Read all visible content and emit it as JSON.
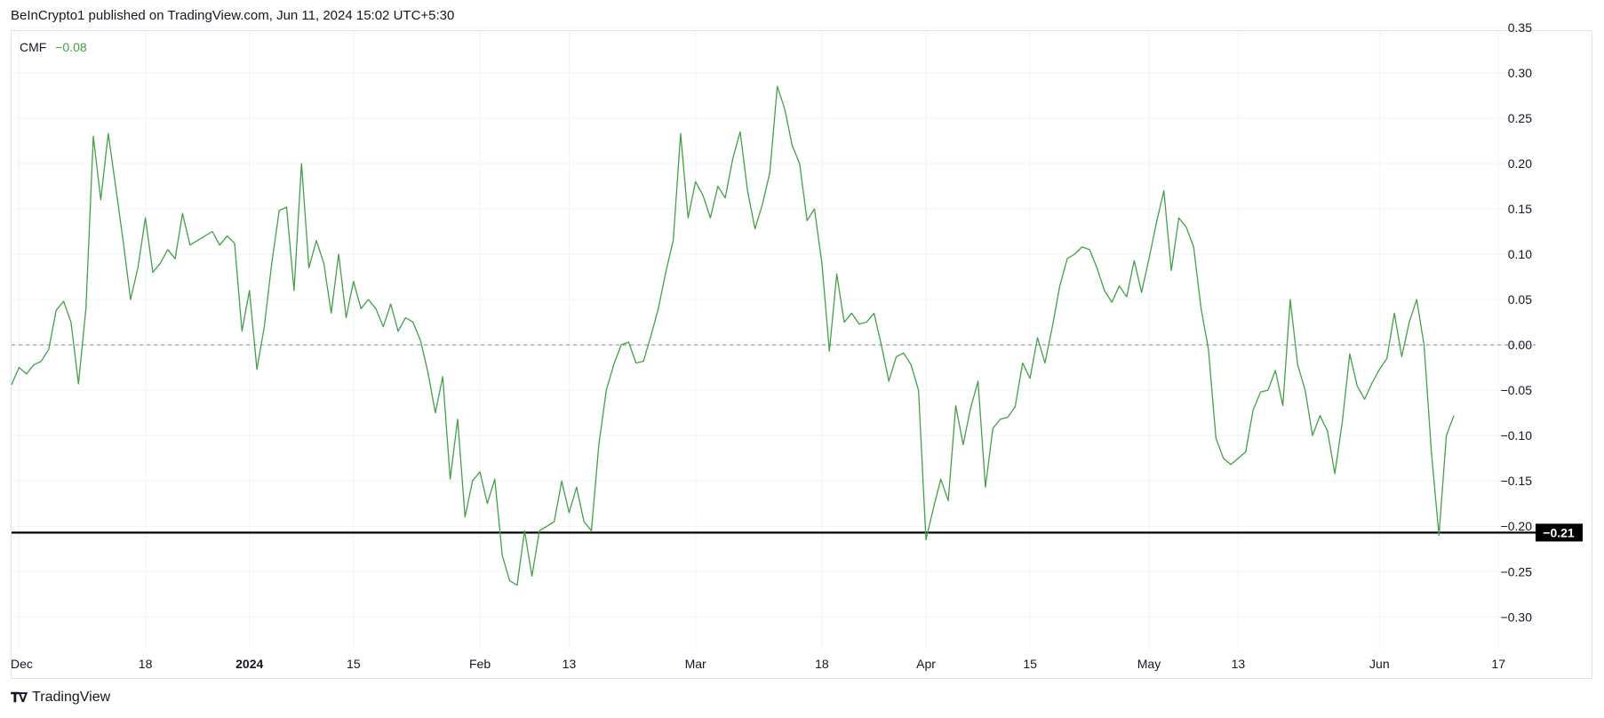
{
  "header": {
    "published": "BeInCrypto1 published on TradingView.com, Jun 11, 2024 15:02 UTC+5:30"
  },
  "legend": {
    "name": "CMF",
    "value": "−0.08"
  },
  "footer": {
    "brand": "TradingView"
  },
  "colors": {
    "line": "#43a047",
    "support": "#000000",
    "grid": "#f0f3fa",
    "zero": "#868993",
    "badge_bg": "#000000",
    "badge_text": "#ffffff"
  },
  "chart_data": {
    "type": "line",
    "series": [
      {
        "name": "CMF",
        "values": [
          -0.044,
          -0.025,
          -0.032,
          -0.022,
          -0.018,
          -0.005,
          0.038,
          0.048,
          0.025,
          -0.043,
          0.04,
          0.23,
          0.16,
          0.233,
          0.175,
          0.115,
          0.05,
          0.085,
          0.14,
          0.08,
          0.09,
          0.105,
          0.095,
          0.145,
          0.11,
          0.115,
          0.12,
          0.125,
          0.11,
          0.12,
          0.112,
          0.015,
          0.06,
          -0.027,
          0.02,
          0.09,
          0.148,
          0.152,
          0.06,
          0.2,
          0.085,
          0.115,
          0.09,
          0.035,
          0.1,
          0.03,
          0.07,
          0.04,
          0.05,
          0.04,
          0.02,
          0.045,
          0.015,
          0.03,
          0.025,
          0.005,
          -0.03,
          -0.075,
          -0.035,
          -0.148,
          -0.082,
          -0.19,
          -0.15,
          -0.14,
          -0.175,
          -0.148,
          -0.232,
          -0.26,
          -0.265,
          -0.205,
          -0.255,
          -0.205,
          -0.2,
          -0.195,
          -0.15,
          -0.185,
          -0.157,
          -0.195,
          -0.205,
          -0.11,
          -0.05,
          -0.022,
          0,
          0.003,
          -0.02,
          -0.018,
          0.01,
          0.04,
          0.08,
          0.115,
          0.233,
          0.14,
          0.18,
          0.165,
          0.14,
          0.175,
          0.162,
          0.205,
          0.235,
          0.17,
          0.128,
          0.155,
          0.19,
          0.285,
          0.26,
          0.22,
          0.2,
          0.137,
          0.15,
          0.09,
          -0.007,
          0.078,
          0.025,
          0.035,
          0.023,
          0.025,
          0.035,
          0,
          -0.04,
          -0.013,
          -0.009,
          -0.022,
          -0.05,
          -0.215,
          -0.18,
          -0.148,
          -0.172,
          -0.067,
          -0.11,
          -0.07,
          -0.04,
          -0.157,
          -0.092,
          -0.082,
          -0.08,
          -0.068,
          -0.02,
          -0.037,
          0.008,
          -0.02,
          0.02,
          0.065,
          0.095,
          0.1,
          0.108,
          0.105,
          0.085,
          0.06,
          0.047,
          0.065,
          0.053,
          0.093,
          0.058,
          0.095,
          0.135,
          0.17,
          0.082,
          0.14,
          0.13,
          0.108,
          0.04,
          -0.005,
          -0.103,
          -0.125,
          -0.132,
          -0.125,
          -0.118,
          -0.072,
          -0.052,
          -0.05,
          -0.028,
          -0.067,
          0.05,
          -0.022,
          -0.05,
          -0.1,
          -0.078,
          -0.095,
          -0.142,
          -0.085,
          -0.01,
          -0.045,
          -0.06,
          -0.042,
          -0.027,
          -0.015,
          0.035,
          -0.013,
          0.025,
          0.05,
          0.0,
          -0.12,
          -0.21,
          -0.1,
          -0.078
        ]
      }
    ],
    "x_start": "2023-11-30",
    "x_end": "2024-06-11",
    "x_ticks": [
      {
        "date": "2023-12-01",
        "label": "Dec",
        "bold": false
      },
      {
        "date": "2023-12-18",
        "label": "18",
        "bold": false
      },
      {
        "date": "2024-01-01",
        "label": "2024",
        "bold": true
      },
      {
        "date": "2024-01-15",
        "label": "15",
        "bold": false
      },
      {
        "date": "2024-02-01",
        "label": "Feb",
        "bold": false
      },
      {
        "date": "2024-02-13",
        "label": "13",
        "bold": false
      },
      {
        "date": "2024-03-01",
        "label": "Mar",
        "bold": false
      },
      {
        "date": "2024-03-18",
        "label": "18",
        "bold": false
      },
      {
        "date": "2024-04-01",
        "label": "Apr",
        "bold": false
      },
      {
        "date": "2024-04-15",
        "label": "15",
        "bold": false
      },
      {
        "date": "2024-05-01",
        "label": "May",
        "bold": false
      },
      {
        "date": "2024-05-13",
        "label": "13",
        "bold": false
      },
      {
        "date": "2024-06-01",
        "label": "Jun",
        "bold": false
      },
      {
        "date": "2024-06-17",
        "label": "17",
        "bold": false
      }
    ],
    "y_ticks": [
      0.35,
      0.3,
      0.25,
      0.2,
      0.15,
      0.1,
      0.05,
      0.0,
      -0.05,
      -0.1,
      -0.15,
      -0.2,
      -0.25,
      -0.3
    ],
    "y_tick_labels": [
      "0.35",
      "0.30",
      "0.25",
      "0.20",
      "0.15",
      "0.10",
      "0.05",
      "0.00",
      "−0.05",
      "−0.10",
      "−0.15",
      "−0.20",
      "−0.25",
      "−0.30"
    ],
    "ylim": [
      -0.335,
      0.345
    ],
    "zero_line": 0,
    "support_line": {
      "value": -0.207,
      "label": "−0.21"
    },
    "grid": true,
    "title": "",
    "xlabel": "",
    "ylabel": ""
  }
}
